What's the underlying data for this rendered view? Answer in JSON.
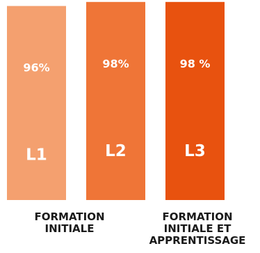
{
  "chart_data": {
    "type": "bar",
    "title": "",
    "xlabel": "",
    "ylabel": "",
    "ylim": [
      0,
      100
    ],
    "grid": false,
    "bars": [
      {
        "label": "L1",
        "value": 96,
        "value_label": "96%",
        "color": "#f4a06f"
      },
      {
        "label": "L2",
        "value": 98,
        "value_label": "98%",
        "color": "#ef7537"
      },
      {
        "label": "L3",
        "value": 98,
        "value_label": "98 %",
        "color": "#e8520f"
      }
    ],
    "groups": [
      {
        "lines": [
          "FORMATION",
          "INITIALE"
        ]
      },
      {
        "lines": [
          "FORMATION",
          "INITIALE ET",
          "APPRENTISSAGE"
        ]
      }
    ]
  }
}
